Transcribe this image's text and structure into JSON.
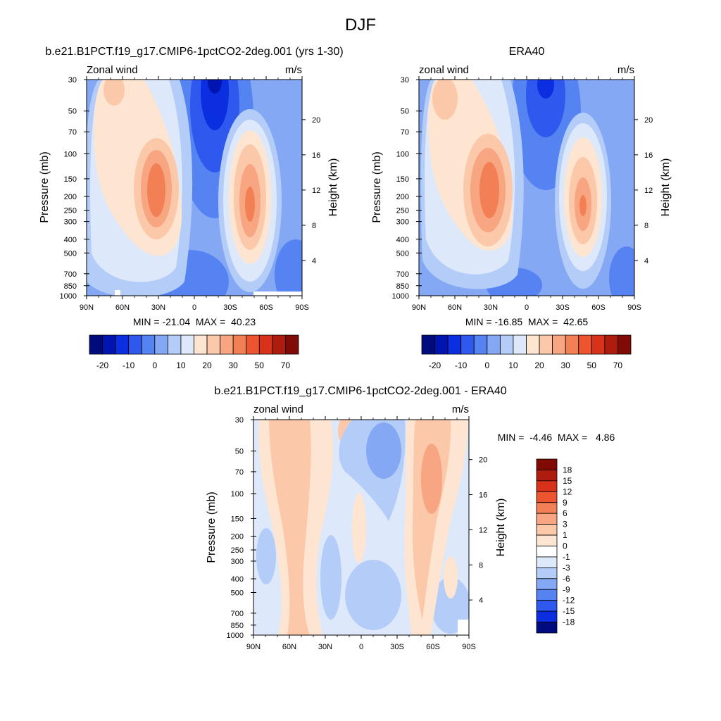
{
  "title": "DJF",
  "pressure_ticks": [
    "30",
    "50",
    "70",
    "100",
    "150",
    "200",
    "250",
    "300",
    "400",
    "500",
    "700",
    "850",
    "1000"
  ],
  "height_ticks": [
    "4",
    "8",
    "12",
    "16",
    "20"
  ],
  "lat_ticks": [
    "90N",
    "60N",
    "30N",
    "0",
    "30S",
    "60S",
    "90S"
  ],
  "ylabel_left": "Pressure (mb)",
  "ylabel_right": "Height (km)",
  "panels": [
    {
      "id": "model",
      "title": "b.e21.B1PCT.f19_g17.CMIP6-1pctCO2-2deg.001 (yrs 1-30)",
      "left_label": "Zonal wind",
      "right_label": "m/s",
      "min_max": "MIN = -21.04  MAX =  40.23"
    },
    {
      "id": "obs",
      "title": "ERA40",
      "left_label": "zonal wind",
      "right_label": "m/s",
      "min_max": "MIN = -16.85  MAX =  42.65"
    },
    {
      "id": "diff",
      "title": "b.e21.B1PCT.f19_g17.CMIP6-1pctCO2-2deg.001 - ERA40",
      "left_label": "zonal wind",
      "right_label": "m/s",
      "min_max": "MIN =  -4.46  MAX =   4.86"
    }
  ],
  "colorbars": {
    "wind": {
      "labels": [
        "-20",
        "-10",
        "0",
        "10",
        "20",
        "30",
        "50",
        "70"
      ],
      "colors": [
        "#000c7d",
        "#0015b0",
        "#0b2ee0",
        "#2e58ee",
        "#5583f2",
        "#85a8f4",
        "#b4cdf8",
        "#dde8fa",
        "#fde5d1",
        "#fcc8aa",
        "#f8a681",
        "#f37f55",
        "#ed5430",
        "#d8321a",
        "#ad1c0d",
        "#7f0a06"
      ]
    },
    "diff": {
      "labels": [
        "18",
        "15",
        "12",
        "9",
        "6",
        "3",
        "1",
        "0",
        "-1",
        "-3",
        "-6",
        "-9",
        "-12",
        "-15",
        "-18"
      ],
      "colors": [
        "#7f0a06",
        "#ad1c0d",
        "#d8321a",
        "#ed5430",
        "#f37f55",
        "#f8a681",
        "#fcc8aa",
        "#fde5d1",
        "#ffffff",
        "#dde8fa",
        "#b4cdf8",
        "#85a8f4",
        "#5583f2",
        "#2e58ee",
        "#0b2ee0",
        "#000c7d"
      ]
    }
  },
  "chart_data": [
    {
      "type": "heatmap",
      "title": "b.e21.B1PCT.f19_g17.CMIP6-1pctCO2-2deg.001 (yrs 1-30)",
      "variable": "Zonal wind",
      "units": "m/s",
      "x": [
        "90N",
        "60N",
        "30N",
        "0",
        "30S",
        "60S",
        "90S"
      ],
      "y_pressure_mb": [
        30,
        50,
        70,
        100,
        150,
        200,
        250,
        300,
        400,
        500,
        700,
        850,
        1000
      ],
      "y_height_km": [
        4,
        8,
        12,
        16,
        20
      ],
      "min": -21.04,
      "max": 40.23,
      "levels": [
        -20,
        -15,
        -10,
        -5,
        0,
        5,
        10,
        15,
        20,
        25,
        30,
        40,
        50,
        60,
        70
      ],
      "features": [
        {
          "lat": 30,
          "p_mb": 200,
          "value": 40
        },
        {
          "lat": -45,
          "p_mb": 220,
          "value": 32
        },
        {
          "lat": 65,
          "p_mb": 30,
          "value": 12
        },
        {
          "lat": -15,
          "p_mb": 30,
          "value": -21
        }
      ]
    },
    {
      "type": "heatmap",
      "title": "ERA40",
      "variable": "zonal wind",
      "units": "m/s",
      "x": [
        "90N",
        "60N",
        "30N",
        "0",
        "30S",
        "60S",
        "90S"
      ],
      "y_pressure_mb": [
        30,
        50,
        70,
        100,
        150,
        200,
        250,
        300,
        400,
        500,
        700,
        850,
        1000
      ],
      "y_height_km": [
        4,
        8,
        12,
        16,
        20
      ],
      "min": -16.85,
      "max": 42.65,
      "levels": [
        -20,
        -15,
        -10,
        -5,
        0,
        5,
        10,
        15,
        20,
        25,
        30,
        40,
        50,
        60,
        70
      ],
      "features": [
        {
          "lat": 30,
          "p_mb": 200,
          "value": 42
        },
        {
          "lat": -47,
          "p_mb": 230,
          "value": 30
        },
        {
          "lat": 65,
          "p_mb": 40,
          "value": 14
        },
        {
          "lat": -15,
          "p_mb": 30,
          "value": -16
        }
      ]
    },
    {
      "type": "heatmap",
      "title": "b.e21.B1PCT.f19_g17.CMIP6-1pctCO2-2deg.001 - ERA40",
      "variable": "zonal wind",
      "units": "m/s",
      "x": [
        "90N",
        "60N",
        "30N",
        "0",
        "30S",
        "60S",
        "90S"
      ],
      "y_pressure_mb": [
        30,
        50,
        70,
        100,
        150,
        200,
        250,
        300,
        400,
        500,
        700,
        850,
        1000
      ],
      "y_height_km": [
        4,
        8,
        12,
        16,
        20
      ],
      "min": -4.46,
      "max": 4.86,
      "levels": [
        -18,
        -15,
        -12,
        -9,
        -6,
        -3,
        -1,
        0,
        1,
        3,
        6,
        9,
        12,
        15,
        18
      ],
      "features": [
        {
          "lat": 50,
          "p_mb": 300,
          "value": 2
        },
        {
          "lat": -50,
          "p_mb": 100,
          "value": 4
        },
        {
          "lat": 5,
          "p_mb": 80,
          "value": -4
        },
        {
          "lat": -15,
          "p_mb": 400,
          "value": -2
        }
      ]
    }
  ]
}
